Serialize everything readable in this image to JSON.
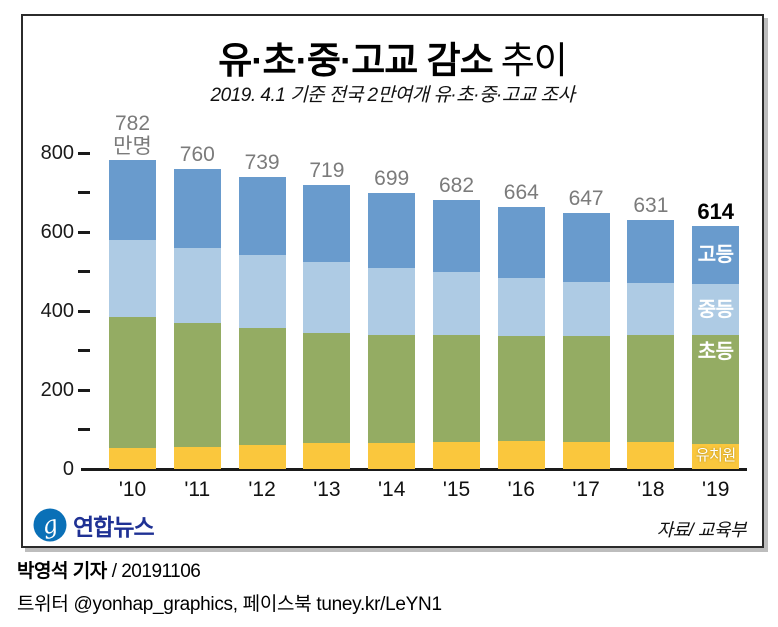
{
  "title": {
    "main": "유·초·중·고교 감소",
    "suffix": "추이"
  },
  "subtitle": "2019. 4.1 기준 전국 2만여개 유·초·중·고교 조사",
  "logo": {
    "text": "연합뉴스"
  },
  "source": "자료/ 교육부",
  "footer": {
    "byline_bold": "박영석 기자",
    "byline_rest": "/ 20191106",
    "social": "트위터 @yonhap_graphics, 페이스북 tuney.kr/LeYN1"
  },
  "colors": {
    "kindergarten": "#fac73d",
    "elementary": "#94ac63",
    "middle": "#aecbe4",
    "high": "#699bcd",
    "total_label_gray": "#7b7b7b",
    "final_label_black": "#000000",
    "logo_circle_blue": "#0a70b7",
    "logo_text_navy": "#1f3194"
  },
  "chart_data": {
    "type": "bar",
    "stacked": true,
    "title": "유·초·중·고교 감소 추이",
    "subtitle": "2019. 4.1 기준 전국 2만여개 유·초·중·고교 조사",
    "unit": "만명",
    "categories": [
      "'10",
      "'11",
      "'12",
      "'13",
      "'14",
      "'15",
      "'16",
      "'17",
      "'18",
      "'19"
    ],
    "series": [
      {
        "name": "유치원",
        "color": "#fac73d",
        "label_style": "small",
        "values": [
          54,
          56,
          61,
          66,
          65,
          68,
          70,
          69,
          68,
          64
        ]
      },
      {
        "name": "초등",
        "color": "#94ac63",
        "label_style": "upper",
        "values": [
          330,
          313,
          295,
          278,
          273,
          271,
          267,
          267,
          271,
          275
        ]
      },
      {
        "name": "중등",
        "color": "#aecbe4",
        "label_style": "center",
        "values": [
          197,
          191,
          185,
          180,
          172,
          159,
          146,
          138,
          133,
          129
        ]
      },
      {
        "name": "고등",
        "color": "#699bcd",
        "label_style": "center",
        "values": [
          201,
          200,
          198,
          195,
          189,
          184,
          181,
          173,
          159,
          146
        ]
      }
    ],
    "totals": [
      782,
      760,
      739,
      719,
      699,
      682,
      664,
      647,
      631,
      614
    ],
    "total_unit": "만명",
    "ylim": [
      0,
      800
    ],
    "y_ticks_labeled": [
      0,
      200,
      400,
      600,
      800
    ],
    "y_ticks_minor": [
      100,
      300,
      500,
      700
    ],
    "grid": false,
    "legend_position": "inside-last-bar"
  }
}
